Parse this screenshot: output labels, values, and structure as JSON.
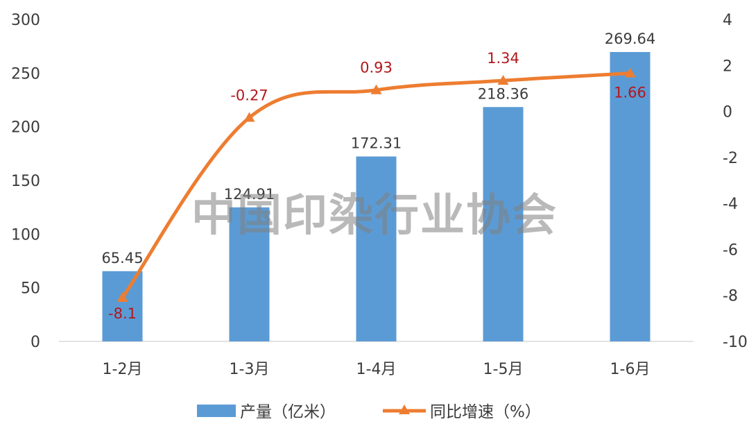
{
  "chart_data": {
    "type": "bar",
    "title": "",
    "categories": [
      "1-2月",
      "1-3月",
      "1-4月",
      "1-5月",
      "1-6月"
    ],
    "series": [
      {
        "name": "产量（亿米）",
        "type": "bar",
        "axis": "left",
        "values": [
          65.45,
          124.91,
          172.31,
          218.36,
          269.64
        ],
        "color": "#5b9bd5"
      },
      {
        "name": "同比增速（%）",
        "type": "line",
        "axis": "right",
        "marker": "triangle",
        "values": [
          -8.1,
          -0.27,
          0.93,
          1.34,
          1.66
        ],
        "color": "#ed7d31"
      }
    ],
    "value_labels": {
      "bars": [
        "65.45",
        "124.91",
        "172.31",
        "218.36",
        "269.64"
      ],
      "line": [
        "-8.1",
        "-0.27",
        "0.93",
        "1.34",
        "1.66"
      ],
      "line_label_color": "#b4161b"
    },
    "y_left": {
      "min": 0,
      "max": 300,
      "ticks": [
        "0",
        "50",
        "100",
        "150",
        "200",
        "250",
        "300"
      ]
    },
    "y_right": {
      "min": -10,
      "max": 4,
      "ticks": [
        "-10",
        "-8",
        "-6",
        "-4",
        "-2",
        "0",
        "2",
        "4"
      ]
    },
    "grid": false,
    "legend": "bottom",
    "watermark": "中国印染行业协会"
  }
}
